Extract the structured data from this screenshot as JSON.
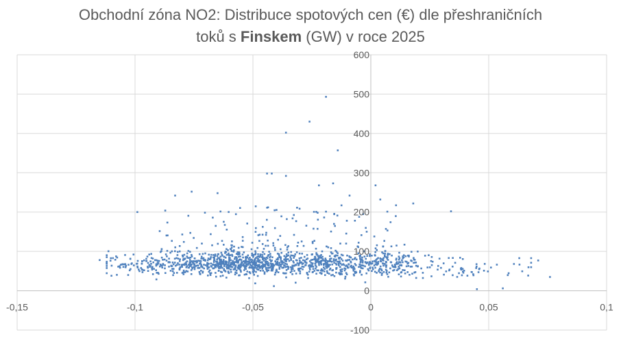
{
  "chart_data": {
    "type": "scatter",
    "title": {
      "line1": "Obchodní zóna NO2: Distribuce spotových cen (€) dle přeshraničních",
      "line2_pre": "toků s ",
      "line2_bold": "Finskem",
      "line2_post": " (GW) v roce 2025"
    },
    "xlabel": "",
    "ylabel": "",
    "xlim": [
      -0.15,
      0.1
    ],
    "ylim": [
      -100,
      600
    ],
    "x_ticks": [
      -0.15,
      -0.1,
      -0.05,
      0,
      0.05,
      0.1
    ],
    "x_tick_labels": [
      "-0,15",
      "-0,1",
      "-0,05",
      "0",
      "0,05",
      "0,1"
    ],
    "y_ticks": [
      -100,
      0,
      100,
      200,
      300,
      400,
      500,
      600
    ],
    "y_tick_labels": [
      "-100",
      "0",
      "100",
      "200",
      "300",
      "400",
      "500",
      "600"
    ],
    "grid": true,
    "marker_color": "#4f81bd",
    "approx_point_count": 1500,
    "outliers": [
      {
        "x": -0.019,
        "y": 493
      },
      {
        "x": -0.026,
        "y": 430
      },
      {
        "x": -0.036,
        "y": 402
      },
      {
        "x": -0.014,
        "y": 357
      },
      {
        "x": -0.044,
        "y": 298
      },
      {
        "x": -0.042,
        "y": 298
      },
      {
        "x": -0.036,
        "y": 292
      },
      {
        "x": -0.016,
        "y": 273
      },
      {
        "x": 0.002,
        "y": 268
      },
      {
        "x": -0.022,
        "y": 268
      },
      {
        "x": -0.076,
        "y": 252
      },
      {
        "x": -0.065,
        "y": 248
      },
      {
        "x": -0.009,
        "y": 242
      },
      {
        "x": -0.083,
        "y": 242
      },
      {
        "x": 0.004,
        "y": 232
      },
      {
        "x": 0.018,
        "y": 222
      },
      {
        "x": -0.099,
        "y": 200
      },
      {
        "x": 0.034,
        "y": 202
      },
      {
        "x": -0.019,
        "y": 201
      },
      {
        "x": 0.007,
        "y": 201
      },
      {
        "x": -0.115,
        "y": 78
      },
      {
        "x": 0.071,
        "y": 77
      },
      {
        "x": 0.076,
        "y": 35
      },
      {
        "x": 0.056,
        "y": 6
      },
      {
        "x": 0.045,
        "y": 4
      },
      {
        "x": -0.11,
        "y": 38
      }
    ]
  }
}
